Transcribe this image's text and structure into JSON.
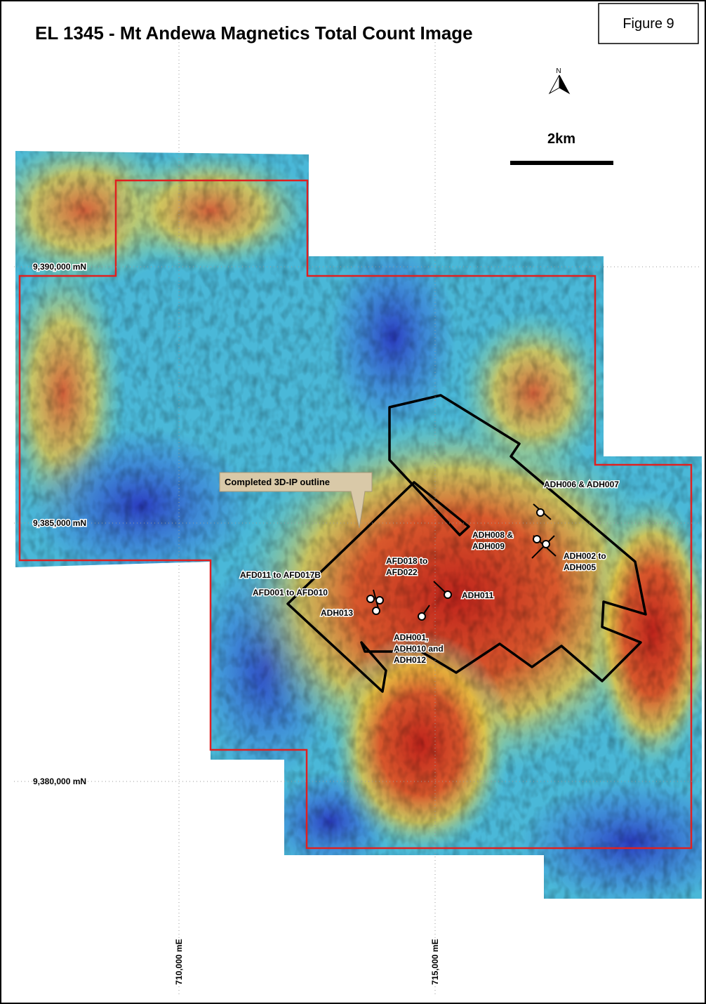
{
  "title": "EL 1345 - Mt Andewa Magnetics Total Count Image",
  "figure_label": "Figure 9",
  "north_label": "N",
  "scale_label": "2km",
  "northings": [
    "9,390,000 mN",
    "9,385,000 mN",
    "9,380,000 mN"
  ],
  "eastings": [
    "710,000 mE",
    "715,000 mE"
  ],
  "callout": "Completed 3D-IP outline",
  "drill_labels": [
    [
      "ADH006 & ADH007"
    ],
    [
      "ADH008 &",
      "ADH009"
    ],
    [
      "ADH002 to",
      "ADH005"
    ],
    [
      "AFD018 to",
      "AFD022"
    ],
    [
      "AFD011 to AFD017B"
    ],
    [
      "AFD001 to AFD010"
    ],
    [
      "ADH011"
    ],
    [
      "ADH013"
    ],
    [
      "ADH001,",
      "ADH010 and",
      "ADH012"
    ]
  ]
}
